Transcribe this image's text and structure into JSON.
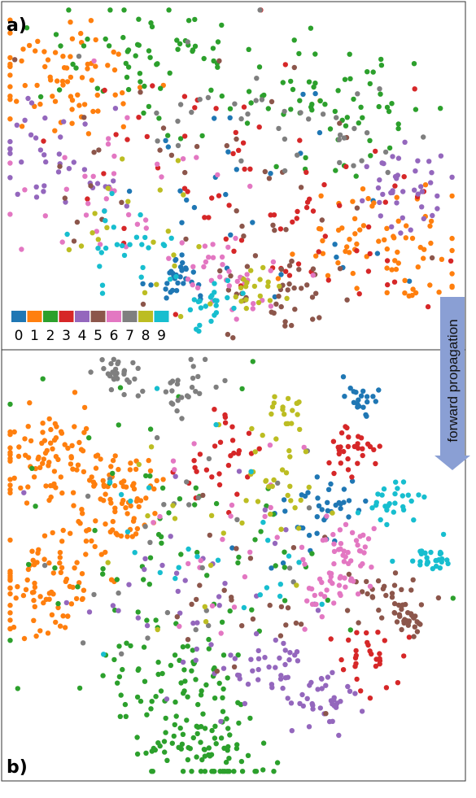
{
  "colors": {
    "classes": [
      "#1f77b4",
      "#ff7f0e",
      "#2ca02c",
      "#d62728",
      "#9467bd",
      "#8c564b",
      "#e377c2",
      "#7f7f7f",
      "#bcbd22",
      "#17becf"
    ],
    "arrow": "#8a9fd4",
    "frame": "#333333"
  },
  "legend": {
    "labels": [
      "0",
      "1",
      "2",
      "3",
      "4",
      "5",
      "6",
      "7",
      "8",
      "9"
    ]
  },
  "annotation": {
    "text": "forward propagation"
  },
  "chart_data": [
    {
      "type": "scatter",
      "panel_label": "a)",
      "title": "",
      "xlabel": "",
      "ylabel": "",
      "axes_visible": false,
      "grid": false,
      "legend_position": "bottom-left",
      "clusters": [
        {
          "class": 0,
          "centers": [
            [
              0.38,
              0.8,
              0.04
            ],
            [
              0.62,
              0.55,
              0.18
            ]
          ],
          "n": 60
        },
        {
          "class": 1,
          "centers": [
            [
              0.12,
              0.22,
              0.1
            ],
            [
              0.85,
              0.7,
              0.1
            ]
          ],
          "n": 150
        },
        {
          "class": 2,
          "centers": [
            [
              0.3,
              0.15,
              0.1
            ],
            [
              0.75,
              0.3,
              0.1
            ]
          ],
          "n": 130
        },
        {
          "class": 3,
          "centers": [
            [
              0.7,
              0.65,
              0.12
            ],
            [
              0.4,
              0.45,
              0.18
            ]
          ],
          "n": 80
        },
        {
          "class": 4,
          "centers": [
            [
              0.12,
              0.45,
              0.07
            ],
            [
              0.9,
              0.52,
              0.07
            ]
          ],
          "n": 80
        },
        {
          "class": 5,
          "centers": [
            [
              0.62,
              0.85,
              0.07
            ],
            [
              0.4,
              0.5,
              0.18
            ]
          ],
          "n": 80
        },
        {
          "class": 6,
          "centers": [
            [
              0.5,
              0.8,
              0.06
            ],
            [
              0.25,
              0.55,
              0.1
            ]
          ],
          "n": 70
        },
        {
          "class": 7,
          "centers": [
            [
              0.75,
              0.38,
              0.07
            ],
            [
              0.4,
              0.25,
              0.12
            ]
          ],
          "n": 40
        },
        {
          "class": 8,
          "centers": [
            [
              0.55,
              0.83,
              0.04
            ],
            [
              0.3,
              0.65,
              0.12
            ]
          ],
          "n": 40
        },
        {
          "class": 9,
          "centers": [
            [
              0.45,
              0.88,
              0.04
            ],
            [
              0.28,
              0.7,
              0.06
            ]
          ],
          "n": 50
        }
      ]
    },
    {
      "type": "scatter",
      "panel_label": "b)",
      "title": "",
      "xlabel": "",
      "ylabel": "",
      "axes_visible": false,
      "grid": false,
      "clusters": [
        {
          "class": 0,
          "centers": [
            [
              0.77,
              0.1,
              0.02
            ],
            [
              0.72,
              0.35,
              0.03
            ],
            [
              0.65,
              0.4,
              0.06
            ]
          ],
          "n": 60
        },
        {
          "class": 1,
          "centers": [
            [
              0.1,
              0.25,
              0.06
            ],
            [
              0.08,
              0.55,
              0.07
            ],
            [
              0.25,
              0.35,
              0.06
            ]
          ],
          "n": 250
        },
        {
          "class": 2,
          "centers": [
            [
              0.38,
              0.8,
              0.08
            ],
            [
              0.45,
              0.94,
              0.07
            ],
            [
              0.4,
              0.5,
              0.18
            ]
          ],
          "n": 220
        },
        {
          "class": 3,
          "centers": [
            [
              0.75,
              0.22,
              0.03
            ],
            [
              0.79,
              0.72,
              0.04
            ],
            [
              0.48,
              0.25,
              0.05
            ]
          ],
          "n": 90
        },
        {
          "class": 4,
          "centers": [
            [
              0.69,
              0.81,
              0.05
            ],
            [
              0.58,
              0.75,
              0.05
            ],
            [
              0.4,
              0.55,
              0.12
            ]
          ],
          "n": 110
        },
        {
          "class": 5,
          "centers": [
            [
              0.83,
              0.58,
              0.04
            ],
            [
              0.88,
              0.62,
              0.02
            ],
            [
              0.55,
              0.6,
              0.1
            ]
          ],
          "n": 80
        },
        {
          "class": 6,
          "centers": [
            [
              0.75,
              0.45,
              0.03
            ],
            [
              0.72,
              0.55,
              0.03
            ],
            [
              0.5,
              0.45,
              0.12
            ]
          ],
          "n": 90
        },
        {
          "class": 7,
          "centers": [
            [
              0.25,
              0.05,
              0.02
            ],
            [
              0.38,
              0.1,
              0.04
            ],
            [
              0.4,
              0.45,
              0.15
            ]
          ],
          "n": 80
        },
        {
          "class": 8,
          "centers": [
            [
              0.6,
              0.15,
              0.03
            ],
            [
              0.6,
              0.3,
              0.04
            ],
            [
              0.45,
              0.45,
              0.12
            ]
          ],
          "n": 60
        },
        {
          "class": 9,
          "centers": [
            [
              0.85,
              0.35,
              0.04
            ],
            [
              0.93,
              0.48,
              0.02
            ],
            [
              0.5,
              0.45,
              0.14
            ]
          ],
          "n": 80
        }
      ]
    }
  ]
}
